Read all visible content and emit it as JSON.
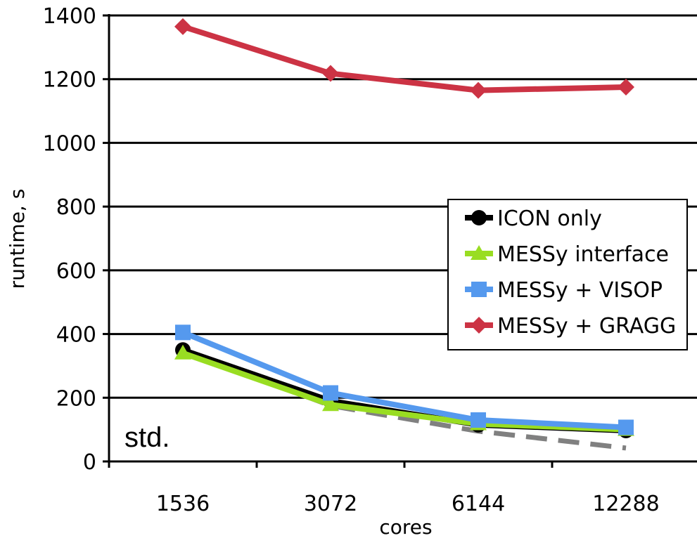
{
  "chart_data": {
    "type": "line",
    "title": "",
    "xlabel": "cores",
    "ylabel": "runtime, s",
    "categories": [
      "1536",
      "3072",
      "6144",
      "12288"
    ],
    "ylim": [
      0,
      1400
    ],
    "yticks": [
      0,
      200,
      400,
      600,
      800,
      1000,
      1200,
      1400
    ],
    "grid": "horizontal",
    "legend_position": "right",
    "annotation": "std.",
    "series": [
      {
        "name": "ICON only",
        "values": [
          350,
          190,
          115,
          97
        ],
        "color": "#000000",
        "marker": "circle",
        "dash": false
      },
      {
        "name": "MESSy interface",
        "values": [
          340,
          178,
          118,
          100
        ],
        "color": "#99dd22",
        "marker": "triangle",
        "dash": false
      },
      {
        "name": "MESSy + VISOP",
        "values": [
          405,
          215,
          130,
          107
        ],
        "color": "#5599ee",
        "marker": "square",
        "dash": false
      },
      {
        "name": "MESSy + GRAGG",
        "values": [
          1365,
          1218,
          1165,
          1175
        ],
        "color": "#cc3344",
        "marker": "diamond",
        "dash": false
      },
      {
        "name": "",
        "values": [
          350,
          175,
          95,
          42
        ],
        "color": "#808080",
        "marker": "none",
        "dash": true
      }
    ]
  }
}
